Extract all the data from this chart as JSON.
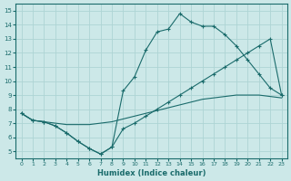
{
  "title": "",
  "xlabel": "Humidex (Indice chaleur)",
  "ylabel": "",
  "bg_color": "#cce8e8",
  "grid_color": "#aed4d4",
  "line_color": "#1a6b6b",
  "xlim": [
    -0.5,
    23.5
  ],
  "ylim": [
    4.5,
    15.5
  ],
  "xticks": [
    0,
    1,
    2,
    3,
    4,
    5,
    6,
    7,
    8,
    9,
    10,
    11,
    12,
    13,
    14,
    15,
    16,
    17,
    18,
    19,
    20,
    21,
    22,
    23
  ],
  "yticks": [
    5,
    6,
    7,
    8,
    9,
    10,
    11,
    12,
    13,
    14,
    15
  ],
  "line_min_x": [
    0,
    1,
    2,
    3,
    4,
    5,
    6,
    7,
    8,
    9,
    10,
    11,
    12,
    13,
    14,
    15,
    16,
    17,
    18,
    19,
    20,
    21,
    22,
    23
  ],
  "line_min_y": [
    7.7,
    7.2,
    7.1,
    6.8,
    6.3,
    5.7,
    5.2,
    4.8,
    5.3,
    6.6,
    7.0,
    7.5,
    8.0,
    8.5,
    9.0,
    9.5,
    10.0,
    10.5,
    11.0,
    11.5,
    12.0,
    12.5,
    13.0,
    9.0
  ],
  "line_avg_x": [
    0,
    1,
    2,
    3,
    4,
    5,
    6,
    7,
    8,
    9,
    10,
    11,
    12,
    13,
    14,
    15,
    16,
    17,
    18,
    19,
    20,
    21,
    22,
    23
  ],
  "line_avg_y": [
    7.7,
    7.2,
    7.1,
    7.0,
    6.9,
    6.9,
    6.9,
    7.0,
    7.1,
    7.3,
    7.5,
    7.7,
    7.9,
    8.1,
    8.3,
    8.5,
    8.7,
    8.8,
    8.9,
    9.0,
    9.0,
    9.0,
    8.9,
    8.8
  ],
  "line_max_x": [
    0,
    1,
    2,
    3,
    4,
    5,
    6,
    7,
    8,
    9,
    10,
    11,
    12,
    13,
    14,
    15,
    16,
    17,
    18,
    19,
    20,
    21,
    22,
    23
  ],
  "line_max_y": [
    7.7,
    7.2,
    7.1,
    6.8,
    6.3,
    5.7,
    5.2,
    4.8,
    5.3,
    9.3,
    10.3,
    12.2,
    13.5,
    13.7,
    14.8,
    14.2,
    13.9,
    13.9,
    13.3,
    12.5,
    11.5,
    10.5,
    9.5,
    9.0
  ]
}
